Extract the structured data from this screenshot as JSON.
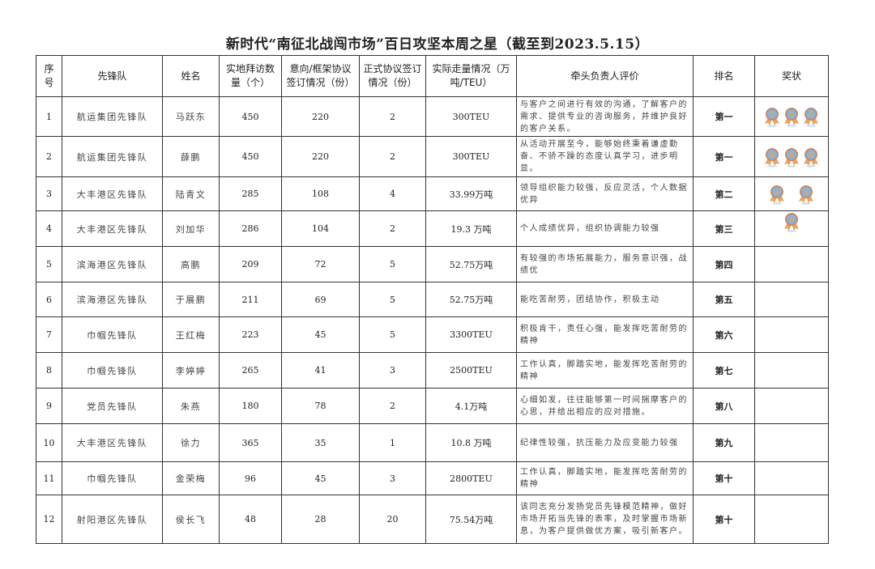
{
  "title": "新时代“南征北战闯市场”百日攻坚本周之星（截至到2023.5.15）",
  "headers": [
    "序号",
    "先锋队",
    "姓名",
    "实地拜访数量（个）",
    "意向/框架协议签订情况（份）",
    "正式协议签订情况（份）",
    "实际走量情况（万吨/TEU）",
    "牵头负责人评价",
    "排名",
    "奖状"
  ],
  "medal_colors": {
    "ribbon": "#e8a460",
    "ring": "#c98a6a",
    "face": "#7fb7e8",
    "star": "#f0a040"
  },
  "rows": [
    {
      "no": "1",
      "team": "航运集团先锋队",
      "name": "马跃东",
      "visits": "450",
      "intent": "220",
      "formal": "2",
      "volume": "300TEU",
      "eval": "与客户之间进行有效的沟通，了解客户的需求、提供专业的咨询服务，并维护良好的客户关系。",
      "rank": "第一",
      "medals": 3
    },
    {
      "no": "2",
      "team": "航运集团先锋队",
      "name": "薛鹏",
      "visits": "450",
      "intent": "220",
      "formal": "2",
      "volume": "300TEU",
      "eval": "从活动开展至今，能够始终秉着谦虚勤奋、不骄不躁的态度认真学习，进步明显。",
      "rank": "第一",
      "medals": 3
    },
    {
      "no": "3",
      "team": "大丰港区先锋队",
      "name": "陆青文",
      "visits": "285",
      "intent": "108",
      "formal": "4",
      "volume": "33.99万吨",
      "eval": "领导组织能力较强，反应灵活，个人数据优异",
      "rank": "第二",
      "medals": 2
    },
    {
      "no": "4",
      "team": "大丰港区先锋队",
      "name": "刘加华",
      "visits": "286",
      "intent": "104",
      "formal": "2",
      "volume": "19.3 万吨",
      "eval": "个人成绩优异，组织协调能力较强",
      "rank": "第三",
      "medals": 1
    },
    {
      "no": "5",
      "team": "滨海港区先锋队",
      "name": "高鹏",
      "visits": "209",
      "intent": "72",
      "formal": "5",
      "volume": "52.75万吨",
      "eval": "有较强的市场拓展能力，服务意识强，战绩优",
      "rank": "第四",
      "medals": 0
    },
    {
      "no": "6",
      "team": "滨海港区先锋队",
      "name": "于展鹏",
      "visits": "211",
      "intent": "69",
      "formal": "5",
      "volume": "52.75万吨",
      "eval": "能吃苦耐劳，团结协作，积极主动",
      "rank": "第五",
      "medals": 0
    },
    {
      "no": "7",
      "team": "巾帼先锋队",
      "name": "王红梅",
      "visits": "223",
      "intent": "45",
      "formal": "5",
      "volume": "3300TEU",
      "eval": "积极肯干，责任心强，能发挥吃苦耐劳的精神",
      "rank": "第六",
      "medals": 0
    },
    {
      "no": "8",
      "team": "巾帼先锋队",
      "name": "李婷婷",
      "visits": "265",
      "intent": "41",
      "formal": "3",
      "volume": "2500TEU",
      "eval": "工作认真，脚踏实地，能发挥吃苦耐劳的精神",
      "rank": "第七",
      "medals": 0
    },
    {
      "no": "9",
      "team": "党员先锋队",
      "name": "朱燕",
      "visits": "180",
      "intent": "78",
      "formal": "2",
      "volume": "4.1万吨",
      "eval": "心细如发，往往能够第一时间揣摩客户的心思，并给出相应的应对措施。",
      "rank": "第八",
      "medals": 0
    },
    {
      "no": "10",
      "team": "大丰港区先锋队",
      "name": "徐力",
      "visits": "365",
      "intent": "35",
      "formal": "1",
      "volume": "10.8 万吨",
      "eval": "纪律性较强，抗压能力及应变能力较强",
      "rank": "第九",
      "medals": 0
    },
    {
      "no": "11",
      "team": "巾帼先锋队",
      "name": "金荣梅",
      "visits": "96",
      "intent": "45",
      "formal": "3",
      "volume": "2800TEU",
      "eval": "工作认真，脚踏实地，能发挥吃苦耐劳的精神",
      "rank": "第十",
      "medals": 0
    },
    {
      "no": "12",
      "team": "射阳港区先锋队",
      "name": "侯长飞",
      "visits": "48",
      "intent": "28",
      "formal": "20",
      "volume": "75.54万吨",
      "eval": "该同志充分发扬党员先锋模范精神，做好市场开拓当先锋的表率，及时掌握市场新息，为客户提供做优方案，吸引新客户。",
      "rank": "第十",
      "medals": 0
    }
  ]
}
